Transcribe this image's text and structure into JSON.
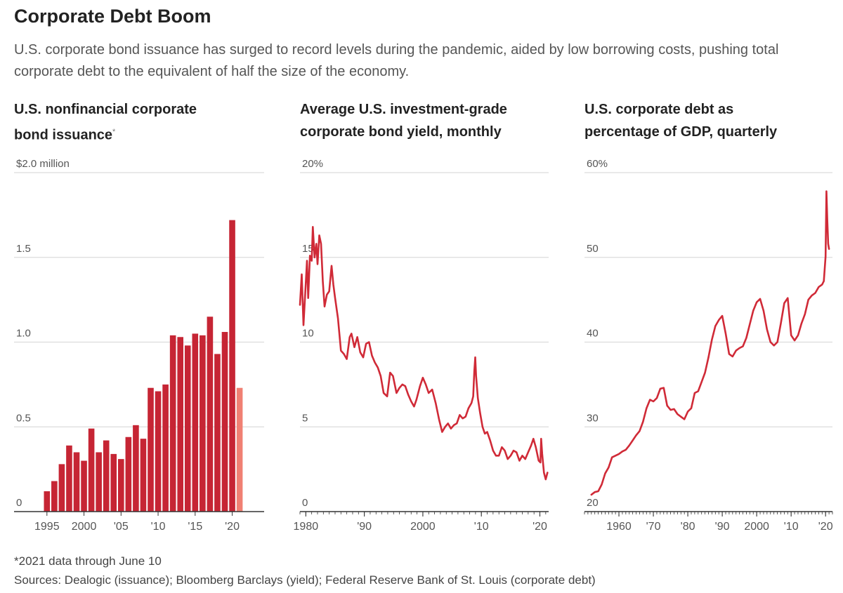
{
  "header": {
    "title": "Corporate Debt Boom",
    "subtitle": "U.S. corporate bond issuance has surged to record levels during the pandemic, aided by low borrowing costs, pushing total corporate debt to the equivalent of half the size of the economy."
  },
  "footer": {
    "note": "*2021 data through June 10",
    "sources": "Sources: Dealogic (issuance); Bloomberg Barclays (yield); Federal Reserve Bank of St. Louis (corporate debt)"
  },
  "colors": {
    "bar": "#c62534",
    "bar_partial": "#f08073",
    "line": "#d02a37",
    "grid": "#dcdcdc",
    "axis": "#333333",
    "tick_text": "#555555"
  },
  "chart_data": [
    {
      "type": "bar",
      "title_line1": "U.S. nonfinancial corporate",
      "title_line2": "bond issuance",
      "title_marker": "*",
      "ylim": [
        0,
        2.0
      ],
      "ytick_values": [
        0,
        0.5,
        1.0,
        1.5,
        2.0
      ],
      "ytick_labels": [
        "0",
        "0.5",
        "1.0",
        "1.5",
        "$2.0 million"
      ],
      "xticks": [
        1995,
        2000,
        2005,
        2010,
        2015,
        2020
      ],
      "xtick_labels": [
        "1995",
        "2000",
        "'05",
        "'10",
        "'15",
        "'20"
      ],
      "categories": [
        1995,
        1996,
        1997,
        1998,
        1999,
        2000,
        2001,
        2002,
        2003,
        2004,
        2005,
        2006,
        2007,
        2008,
        2009,
        2010,
        2011,
        2012,
        2013,
        2014,
        2015,
        2016,
        2017,
        2018,
        2019,
        2020,
        2021
      ],
      "values": [
        0.12,
        0.18,
        0.28,
        0.39,
        0.35,
        0.3,
        0.49,
        0.35,
        0.42,
        0.34,
        0.31,
        0.44,
        0.51,
        0.43,
        0.73,
        0.71,
        0.75,
        1.04,
        1.03,
        0.98,
        1.05,
        1.04,
        1.15,
        0.93,
        1.06,
        1.72,
        0.73
      ],
      "partial_year": 2021
    },
    {
      "type": "line",
      "title_line1": "Average U.S. investment-grade",
      "title_line2": "corporate bond yield, monthly",
      "ylim": [
        0,
        20
      ],
      "ytick_values": [
        0,
        5,
        10,
        15,
        20
      ],
      "ytick_labels": [
        "0",
        "5",
        "10",
        "15",
        "20%"
      ],
      "xlim": [
        1979,
        2021.5
      ],
      "xticks": [
        1980,
        1990,
        2000,
        2010,
        2020
      ],
      "xtick_labels": [
        "1980",
        "'90",
        "2000",
        "'10",
        "'20"
      ],
      "x": [
        1979.0,
        1979.3,
        1979.6,
        1980.0,
        1980.2,
        1980.4,
        1980.7,
        1981.0,
        1981.2,
        1981.5,
        1981.8,
        1982.0,
        1982.3,
        1982.6,
        1982.9,
        1983.2,
        1983.6,
        1984.0,
        1984.4,
        1984.7,
        1985.0,
        1985.5,
        1986.0,
        1986.5,
        1987.0,
        1987.5,
        1987.8,
        1988.3,
        1988.8,
        1989.3,
        1989.8,
        1990.3,
        1990.8,
        1991.3,
        1991.8,
        1992.3,
        1992.8,
        1993.3,
        1993.9,
        1994.4,
        1994.9,
        1995.5,
        1996.0,
        1996.5,
        1997.0,
        1997.5,
        1998.0,
        1998.5,
        1998.9,
        1999.5,
        2000.0,
        2000.5,
        2001.0,
        2001.6,
        2002.2,
        2002.8,
        2003.3,
        2003.8,
        2004.3,
        2004.8,
        2005.3,
        2005.8,
        2006.3,
        2006.8,
        2007.3,
        2007.8,
        2008.3,
        2008.6,
        2008.8,
        2008.95,
        2009.1,
        2009.4,
        2009.8,
        2010.2,
        2010.6,
        2011.0,
        2011.5,
        2012.0,
        2012.5,
        2013.0,
        2013.5,
        2014.0,
        2014.5,
        2015.0,
        2015.5,
        2016.0,
        2016.5,
        2017.0,
        2017.5,
        2018.0,
        2018.5,
        2018.9,
        2019.3,
        2019.8,
        2020.1,
        2020.22,
        2020.4,
        2020.7,
        2021.0,
        2021.3
      ],
      "y": [
        12.2,
        14.0,
        11.0,
        13.5,
        14.8,
        12.6,
        15.1,
        14.8,
        16.8,
        15.0,
        15.8,
        14.6,
        16.3,
        15.8,
        13.6,
        12.1,
        12.8,
        13.0,
        14.5,
        13.4,
        12.6,
        11.4,
        9.5,
        9.3,
        9.0,
        10.3,
        10.5,
        9.7,
        10.3,
        9.4,
        9.1,
        9.9,
        10.0,
        9.2,
        8.8,
        8.5,
        8.0,
        7.0,
        6.8,
        8.2,
        8.0,
        7.0,
        7.3,
        7.5,
        7.4,
        6.9,
        6.5,
        6.2,
        6.6,
        7.4,
        7.9,
        7.5,
        7.0,
        7.2,
        6.4,
        5.4,
        4.7,
        5.0,
        5.2,
        4.9,
        5.1,
        5.2,
        5.7,
        5.5,
        5.6,
        6.1,
        6.4,
        6.8,
        8.3,
        9.1,
        8.0,
        6.7,
        5.8,
        5.0,
        4.6,
        4.7,
        4.2,
        3.6,
        3.3,
        3.3,
        3.8,
        3.6,
        3.1,
        3.3,
        3.6,
        3.5,
        3.0,
        3.3,
        3.1,
        3.5,
        3.9,
        4.3,
        3.8,
        3.0,
        2.9,
        4.3,
        3.4,
        2.3,
        1.9,
        2.3
      ]
    },
    {
      "type": "line",
      "title_line1": "U.S. corporate debt as",
      "title_line2": "percentage of GDP, quarterly",
      "ylim": [
        20,
        60
      ],
      "ytick_values": [
        20,
        30,
        40,
        50,
        60
      ],
      "ytick_labels": [
        "20",
        "30",
        "40",
        "50",
        "60%"
      ],
      "xlim": [
        1950,
        2022
      ],
      "xticks": [
        1960,
        1970,
        1980,
        1990,
        2000,
        2010,
        2020
      ],
      "xtick_labels": [
        "1960",
        "'70",
        "'80",
        "'90",
        "2000",
        "'10",
        "'20"
      ],
      "x": [
        1952,
        1953,
        1954,
        1955,
        1956,
        1957,
        1958,
        1959,
        1960,
        1961,
        1962,
        1963,
        1964,
        1965,
        1966,
        1967,
        1968,
        1969,
        1970,
        1971,
        1972,
        1973,
        1974,
        1975,
        1976,
        1977,
        1978,
        1979,
        1980,
        1981,
        1982,
        1983,
        1984,
        1985,
        1986,
        1987,
        1988,
        1989,
        1990,
        1991,
        1992,
        1993,
        1994,
        1995,
        1996,
        1997,
        1998,
        1999,
        2000,
        2001,
        2002,
        2003,
        2004,
        2005,
        2006,
        2007,
        2008,
        2009,
        2010,
        2011,
        2012,
        2013,
        2014,
        2015,
        2016,
        2017,
        2018,
        2019,
        2019.5,
        2020.0,
        2020.25,
        2020.5,
        2020.75,
        2021.0
      ],
      "y": [
        22.0,
        22.3,
        22.4,
        23.2,
        24.5,
        25.2,
        26.4,
        26.6,
        26.8,
        27.1,
        27.3,
        27.8,
        28.4,
        29.0,
        29.5,
        30.6,
        32.2,
        33.2,
        33.0,
        33.4,
        34.5,
        34.6,
        32.5,
        32.0,
        32.1,
        31.5,
        31.2,
        30.9,
        31.8,
        32.2,
        34.0,
        34.2,
        35.3,
        36.4,
        38.2,
        40.3,
        41.9,
        42.6,
        43.1,
        41.0,
        38.6,
        38.3,
        39.0,
        39.3,
        39.5,
        40.5,
        42.1,
        43.7,
        44.7,
        45.1,
        43.7,
        41.5,
        40.0,
        39.6,
        40.0,
        42.2,
        44.6,
        45.2,
        40.8,
        40.2,
        40.8,
        42.2,
        43.3,
        45.0,
        45.5,
        45.8,
        46.5,
        46.8,
        47.2,
        50.1,
        57.8,
        54.5,
        51.6,
        51.0
      ]
    }
  ]
}
